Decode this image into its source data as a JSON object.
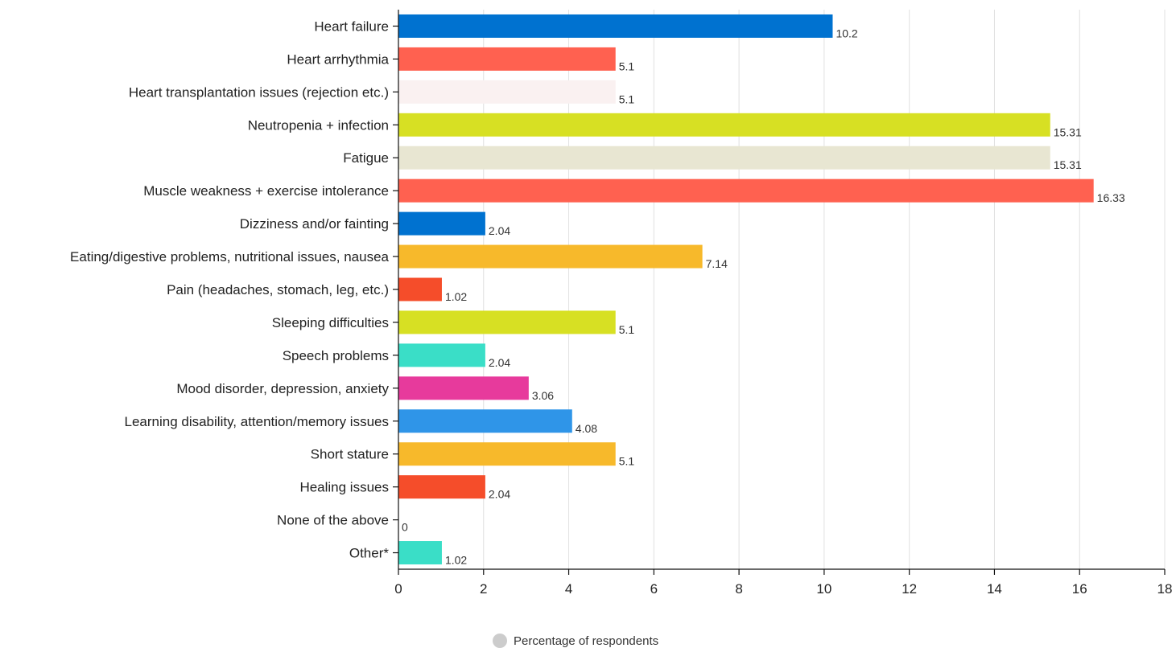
{
  "chart_data": {
    "type": "bar",
    "orientation": "horizontal",
    "categories": [
      "Heart failure",
      "Heart arrhythmia",
      "Heart transplantation issues (rejection etc.)",
      "Neutropenia + infection",
      "Fatigue",
      "Muscle weakness + exercise intolerance",
      "Dizziness and/or fainting",
      "Eating/digestive problems, nutritional issues, nausea",
      "Pain (headaches, stomach, leg, etc.)",
      "Sleeping difficulties",
      "Speech problems",
      "Mood disorder, depression, anxiety",
      "Learning disability, attention/memory issues",
      "Short stature",
      "Healing issues",
      "None of the above",
      "Other*"
    ],
    "values": [
      10.2,
      5.1,
      5.1,
      15.31,
      15.31,
      16.33,
      2.04,
      7.14,
      1.02,
      5.1,
      2.04,
      3.06,
      4.08,
      5.1,
      2.04,
      0,
      1.02
    ],
    "value_labels": [
      "10.2",
      "5.1",
      "5.1",
      "15.31",
      "15.31",
      "16.33",
      "2.04",
      "7.14",
      "1.02",
      "5.1",
      "2.04",
      "3.06",
      "4.08",
      "5.1",
      "2.04",
      "0",
      "1.02"
    ],
    "colors": [
      "#0072d0",
      "#ff6150",
      "#faf1f1",
      "#d7e023",
      "#e8e6d2",
      "#ff6150",
      "#0072d0",
      "#f7b92b",
      "#f54d2a",
      "#d7e023",
      "#3adec7",
      "#e73a9c",
      "#2f95e8",
      "#f7b92b",
      "#f54d2a",
      "#3adec7",
      "#3adec7"
    ],
    "xlim": [
      0,
      18
    ],
    "xticks": [
      0,
      2,
      4,
      6,
      8,
      10,
      12,
      14,
      16,
      18
    ],
    "grid": true,
    "legend": {
      "position": "bottom-center",
      "entries": [
        {
          "name": "Percentage of respondents",
          "color": "#cccccc"
        }
      ]
    },
    "title": "",
    "xlabel": "",
    "ylabel": ""
  }
}
